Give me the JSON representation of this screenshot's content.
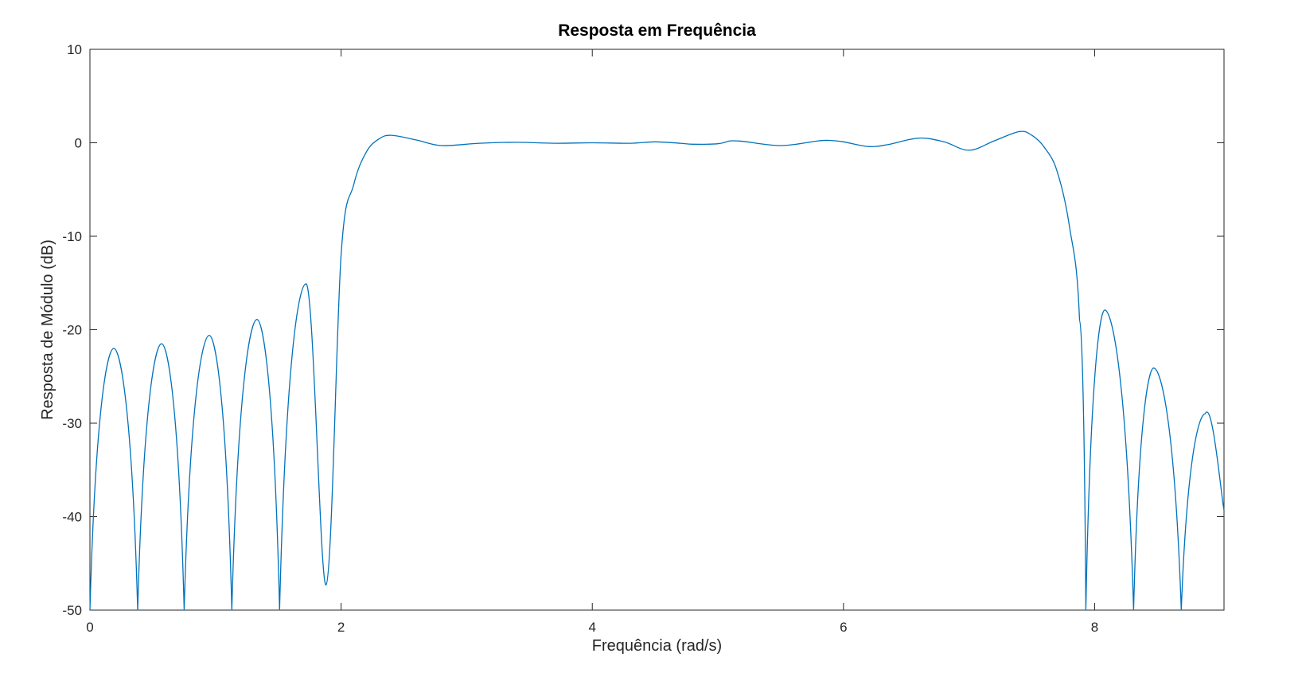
{
  "chart_data": {
    "type": "line",
    "title": "Resposta em Frequência",
    "xlabel": "Frequência (rad/s)",
    "ylabel": "Resposta de Módulo (dB)",
    "xlim": [
      0,
      9.03
    ],
    "ylim": [
      -50,
      10
    ],
    "xticks": [
      0,
      2,
      4,
      6,
      8
    ],
    "yticks": [
      10,
      0,
      -10,
      -20,
      -30,
      -40,
      -50
    ],
    "xtick_labels": [
      "0",
      "2",
      "4",
      "6",
      "8"
    ],
    "ytick_labels": [
      "10",
      "0",
      "-10",
      "-20",
      "-30",
      "-40",
      "-50"
    ],
    "grid": false,
    "line_color": "#0072bd",
    "series": [
      {
        "x": [
          0.0,
          0.19,
          0.38,
          0.57,
          0.75,
          0.95,
          1.13,
          1.33,
          1.51,
          1.72,
          1.88,
          2.0,
          2.1,
          2.2,
          2.3,
          2.4,
          2.6,
          2.8,
          3.1,
          3.4,
          3.7,
          4.0,
          4.3,
          4.5,
          4.7,
          4.8,
          5.0,
          5.1,
          5.2,
          5.5,
          5.8,
          5.9,
          6.0,
          6.2,
          6.35,
          6.6,
          6.8,
          7.0,
          7.2,
          7.4,
          7.5,
          7.6,
          7.7,
          7.8,
          7.88,
          7.93,
          8.08,
          8.31,
          8.47,
          8.69,
          8.88,
          9.03
        ],
        "y": [
          -50,
          -22.0,
          -50,
          -21.5,
          -50,
          -20.6,
          -50,
          -18.9,
          -50,
          -15.1,
          -47.3,
          -12.0,
          -4.5,
          -1.0,
          0.4,
          0.8,
          0.3,
          -0.3,
          -0.05,
          0.05,
          -0.05,
          0.0,
          -0.05,
          0.1,
          -0.05,
          -0.15,
          -0.1,
          0.2,
          0.15,
          -0.3,
          0.2,
          0.25,
          0.1,
          -0.4,
          -0.2,
          0.5,
          0.1,
          -0.8,
          0.2,
          1.2,
          0.8,
          -0.5,
          -3.0,
          -9.0,
          -19.0,
          -50,
          -17.9,
          -50,
          -24.1,
          -50,
          -29.0,
          -39.3
        ]
      }
    ]
  }
}
